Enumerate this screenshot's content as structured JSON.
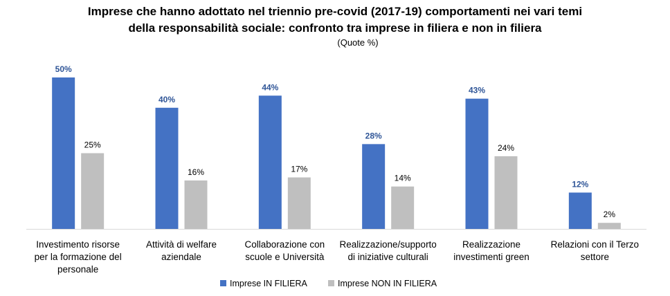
{
  "chart_data": {
    "type": "bar",
    "title_lines": [
      "Imprese che hanno adottato nel triennio pre-covid (2017-19) comportamenti nei vari temi",
      "della responsabilità sociale: confronto tra imprese in filiera e non in filiera"
    ],
    "subtitle": "(Quote %)",
    "categories": [
      [
        "Investimento risorse",
        "per la formazione del",
        "personale"
      ],
      [
        "Attività di welfare",
        "aziendale"
      ],
      [
        "Collaborazione con",
        "scuole e Università"
      ],
      [
        "Realizzazione/supporto",
        "di iniziative culturali"
      ],
      [
        "Realizzazione",
        "investimenti green"
      ],
      [
        "Relazioni con il Terzo",
        "settore"
      ]
    ],
    "series": [
      {
        "name": "Imprese IN FILIERA",
        "values": [
          50,
          40,
          44,
          28,
          43,
          12
        ],
        "labels": [
          "50%",
          "40%",
          "44%",
          "28%",
          "43%",
          "12%"
        ],
        "color": "#4472C4",
        "label_color": "#2F5597",
        "label_bold": true
      },
      {
        "name": "Imprese NON IN FILIERA",
        "values": [
          25,
          16,
          17,
          14,
          24,
          2
        ],
        "labels": [
          "25%",
          "16%",
          "17%",
          "14%",
          "24%",
          "2%"
        ],
        "color": "#BFBFBF",
        "label_color": "#000000",
        "label_bold": false
      }
    ],
    "ylim": [
      0,
      50
    ],
    "legend_position": "bottom",
    "grid": false
  }
}
